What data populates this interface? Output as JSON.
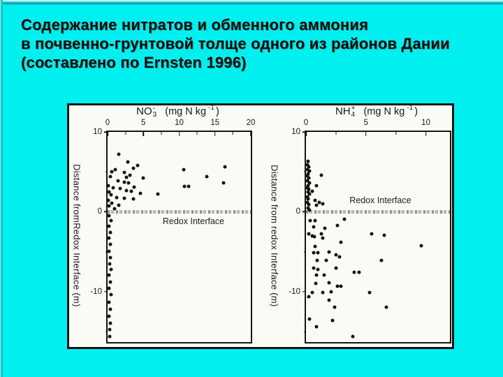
{
  "slide": {
    "title_lines": [
      "Содержание нитратов и обменного аммония",
      "в почвенно-грунтовой толще одного из районов Дании",
      "(составлено по Ernsten 1996)"
    ],
    "background_color": "#00f0f0",
    "title_color": "#0c0c0c"
  },
  "figure": {
    "background_color": "#fbfbf6",
    "border_color": "#111111",
    "dot_color": "#121212"
  },
  "chart_data": [
    {
      "type": "scatter",
      "xtitle": {
        "base": "NO",
        "subscript": "3",
        "charge": "-",
        "units_pre": "(mg N kg",
        "units_sup": "-1",
        "units_post": ")"
      },
      "ylabel": "Distance fromRedox Interface (m)",
      "xlim": [
        0,
        20
      ],
      "ylim": [
        10,
        -16.3
      ],
      "grid": false,
      "legend": "none",
      "x_major_ticks": [
        {
          "v": 0,
          "label": "0"
        },
        {
          "v": 5,
          "label": "5"
        },
        {
          "v": 10,
          "label": "10"
        },
        {
          "v": 15,
          "label": "15"
        },
        {
          "v": 20,
          "label": "20"
        }
      ],
      "x_minor_ticks": [
        2.5,
        7.5,
        12.5,
        17.5
      ],
      "y_major_ticks": [
        {
          "v": 10,
          "label": "10"
        },
        {
          "v": 0,
          "label": "0"
        },
        {
          "v": -10,
          "label": "-10"
        }
      ],
      "y_minor_ticks": [
        5,
        -5,
        -15
      ],
      "interface": {
        "y": 0,
        "label": "Redox Interface",
        "label_side": "below",
        "label_x": 12
      },
      "points": [
        [
          1.6,
          7.2
        ],
        [
          2.8,
          6.2
        ],
        [
          4.2,
          5.8
        ],
        [
          3.6,
          5.5
        ],
        [
          1.1,
          5.3
        ],
        [
          0.6,
          5.0
        ],
        [
          2.3,
          4.9
        ],
        [
          3.1,
          4.6
        ],
        [
          2.6,
          4.3
        ],
        [
          5.0,
          4.2
        ],
        [
          0.4,
          4.4
        ],
        [
          1.5,
          3.9
        ],
        [
          2.3,
          3.7
        ],
        [
          2.9,
          3.6
        ],
        [
          3.7,
          3.1
        ],
        [
          0.8,
          3.0
        ],
        [
          1.8,
          2.9
        ],
        [
          2.6,
          2.7
        ],
        [
          3.3,
          2.6
        ],
        [
          4.6,
          2.3
        ],
        [
          7.0,
          2.2
        ],
        [
          0.5,
          2.1
        ],
        [
          1.3,
          1.8
        ],
        [
          2.3,
          1.7
        ],
        [
          3.6,
          1.6
        ],
        [
          0.6,
          1.1
        ],
        [
          1.6,
          0.8
        ],
        [
          0.2,
          0.7
        ],
        [
          1.0,
          0.4
        ],
        [
          0.1,
          1.4
        ],
        [
          0.2,
          2.5
        ],
        [
          0.1,
          3.3
        ],
        [
          10.6,
          5.3
        ],
        [
          13.9,
          4.4
        ],
        [
          16.4,
          5.6
        ],
        [
          16.2,
          3.6
        ],
        [
          10.7,
          3.2
        ],
        [
          11.3,
          3.2
        ],
        [
          0.2,
          -0.5
        ],
        [
          0.45,
          -1.1
        ],
        [
          0.2,
          -1.8
        ],
        [
          0.4,
          -2.6
        ],
        [
          0.15,
          -3.3
        ],
        [
          0.4,
          -4.1
        ],
        [
          0.2,
          -4.9
        ],
        [
          0.4,
          -5.7
        ],
        [
          0.25,
          -6.5
        ],
        [
          0.45,
          -7.2
        ],
        [
          0.2,
          -7.9
        ],
        [
          0.4,
          -8.8
        ],
        [
          0.2,
          -9.6
        ],
        [
          0.45,
          -10.4
        ],
        [
          0.2,
          -11.3
        ],
        [
          0.35,
          -12.2
        ],
        [
          0.2,
          -13.1
        ],
        [
          0.4,
          -13.9
        ],
        [
          0.25,
          -14.7
        ],
        [
          0.3,
          -15.6
        ]
      ]
    },
    {
      "type": "scatter",
      "xtitle": {
        "base": "NH",
        "subscript": "4",
        "charge": "+",
        "units_pre": "(mg N kg",
        "units_sup": "-1",
        "units_post": ")"
      },
      "ylabel": "Distance from redox Interface (m)",
      "xlim": [
        0,
        12
      ],
      "ylim": [
        10,
        -16.3
      ],
      "grid": false,
      "legend": "none",
      "x_major_ticks": [
        {
          "v": 0,
          "label": "0"
        },
        {
          "v": 5,
          "label": "5"
        },
        {
          "v": 10,
          "label": "10"
        }
      ],
      "x_minor_ticks": [
        2.5,
        7.5
      ],
      "y_major_ticks": [
        {
          "v": 10,
          "label": "10"
        },
        {
          "v": 0,
          "label": "0"
        },
        {
          "v": -10,
          "label": "-10"
        }
      ],
      "y_minor_ticks": [
        5,
        -5,
        -15
      ],
      "interface": {
        "y": 0,
        "label": "Redox Interface",
        "label_side": "above",
        "label_x": 6.2
      },
      "points": [
        [
          0.15,
          6.3
        ],
        [
          0.1,
          5.9
        ],
        [
          0.25,
          5.6
        ],
        [
          0.1,
          5.3
        ],
        [
          0.3,
          5.1
        ],
        [
          0.15,
          4.8
        ],
        [
          0.1,
          4.5
        ],
        [
          0.25,
          4.2
        ],
        [
          0.1,
          3.9
        ],
        [
          0.3,
          3.6
        ],
        [
          0.15,
          3.3
        ],
        [
          0.1,
          3.0
        ],
        [
          0.25,
          2.8
        ],
        [
          0.15,
          2.5
        ],
        [
          0.3,
          2.2
        ],
        [
          0.1,
          1.9
        ],
        [
          0.2,
          1.6
        ],
        [
          0.1,
          1.2
        ],
        [
          0.25,
          0.9
        ],
        [
          0.15,
          0.5
        ],
        [
          0.3,
          0.2
        ],
        [
          1.3,
          4.6
        ],
        [
          0.85,
          3.3
        ],
        [
          0.55,
          2.6
        ],
        [
          0.75,
          1.4
        ],
        [
          1.1,
          1.2
        ],
        [
          1.4,
          1.0
        ],
        [
          0.9,
          0.85
        ],
        [
          0.35,
          -1.1
        ],
        [
          0.75,
          -1.1
        ],
        [
          0.65,
          -1.9
        ],
        [
          1.6,
          -2.1
        ],
        [
          2.6,
          -1.7
        ],
        [
          3.2,
          -0.9
        ],
        [
          0.25,
          -2.8
        ],
        [
          0.55,
          -3.0
        ],
        [
          1.3,
          -2.8
        ],
        [
          5.5,
          -2.8
        ],
        [
          6.5,
          -2.9
        ],
        [
          0.7,
          -3.1
        ],
        [
          1.4,
          -3.3
        ],
        [
          2.9,
          -3.8
        ],
        [
          9.6,
          -4.2
        ],
        [
          0.75,
          -4.3
        ],
        [
          0.65,
          -5.1
        ],
        [
          1.0,
          -5.1
        ],
        [
          1.9,
          -5.0
        ],
        [
          2.5,
          -5.4
        ],
        [
          2.8,
          -5.6
        ],
        [
          0.95,
          -6.1
        ],
        [
          1.7,
          -6.1
        ],
        [
          6.3,
          -6.1
        ],
        [
          0.65,
          -7.0
        ],
        [
          1.0,
          -7.2
        ],
        [
          2.5,
          -7.0
        ],
        [
          4.0,
          -7.6
        ],
        [
          4.4,
          -7.6
        ],
        [
          0.85,
          -7.9
        ],
        [
          1.5,
          -7.9
        ],
        [
          1.9,
          -8.9
        ],
        [
          0.8,
          -9.0
        ],
        [
          2.6,
          -9.3
        ],
        [
          2.9,
          -9.3
        ],
        [
          0.55,
          -10.1
        ],
        [
          1.4,
          -10.1
        ],
        [
          2.1,
          -10.0
        ],
        [
          5.3,
          -10.1
        ],
        [
          0.25,
          -10.6
        ],
        [
          1.9,
          -11.1
        ],
        [
          2.4,
          -11.9
        ],
        [
          6.7,
          -11.9
        ],
        [
          0.3,
          -13.4
        ],
        [
          2.2,
          -13.6
        ],
        [
          0.9,
          -14.4
        ],
        [
          3.9,
          -15.6
        ]
      ]
    }
  ]
}
